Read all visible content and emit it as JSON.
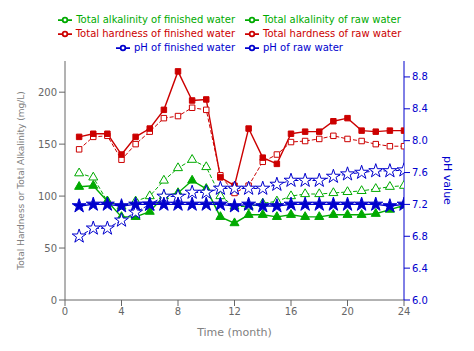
{
  "chart_data": {
    "type": "line",
    "x": [
      1,
      2,
      3,
      4,
      5,
      6,
      7,
      8,
      9,
      10,
      11,
      12,
      13,
      14,
      15,
      16,
      17,
      18,
      19,
      20,
      21,
      22,
      23,
      24
    ],
    "xlabel": "Time (month)",
    "ylabel": "Total Hardness or Total Alkalinity (mg/L)",
    "y2label": "pH value",
    "xlim": [
      0,
      24
    ],
    "xticks": [
      0,
      4,
      8,
      12,
      16,
      20,
      24
    ],
    "ylim": [
      0,
      230
    ],
    "yticks": [
      0,
      50,
      100,
      150,
      200
    ],
    "y2lim": [
      6.0,
      9.0
    ],
    "y2ticks": [
      {
        "value": 6.0,
        "label": "6.0"
      },
      6.4,
      6.8,
      7.2,
      7.6,
      {
        "value": 8.0,
        "label": "8.0"
      },
      8.4,
      8.8
    ],
    "grid": false,
    "legend": "top",
    "series": [
      {
        "name": "Total hardness of raw water",
        "color": "#cc0000",
        "marker": "square",
        "line_style": "dashed",
        "values": [
          145,
          157,
          158,
          135,
          150,
          162,
          175,
          177,
          185,
          183,
          120,
          103,
          110,
          133,
          140,
          152,
          153,
          155,
          158,
          155,
          153,
          150,
          148,
          148
        ]
      },
      {
        "name": "Total hardness of finished water",
        "color": "#cc0000",
        "marker": "square",
        "line_style": "solid",
        "values": [
          157,
          160,
          160,
          140,
          157,
          165,
          183,
          220,
          192,
          193,
          118,
          110,
          165,
          137,
          131,
          160,
          162,
          162,
          172,
          175,
          163,
          162,
          163,
          163
        ]
      },
      {
        "name": "Total alkalinity of raw water",
        "color": "#00aa00",
        "marker": "triangle",
        "line_style": "dashed",
        "values": [
          122,
          118,
          95,
          90,
          95,
          100,
          115,
          127,
          135,
          128,
          100,
          90,
          90,
          93,
          95,
          100,
          102,
          102,
          103,
          104,
          105,
          107,
          109,
          110
        ]
      },
      {
        "name": "Total alkalinity of finished water",
        "color": "#00aa00",
        "marker": "triangle",
        "line_style": "solid",
        "values": [
          109,
          110,
          95,
          80,
          80,
          85,
          100,
          103,
          115,
          107,
          80,
          74,
          82,
          82,
          80,
          82,
          80,
          80,
          82,
          82,
          82,
          83,
          87,
          91
        ]
      },
      {
        "name": "pH of raw water",
        "color": "#0000cd",
        "marker": "star",
        "line_style": "dashed",
        "axis": "y2",
        "values": [
          6.8,
          6.9,
          6.9,
          7.0,
          7.1,
          7.2,
          7.3,
          7.3,
          7.35,
          7.35,
          7.4,
          7.4,
          7.4,
          7.4,
          7.45,
          7.5,
          7.5,
          7.5,
          7.55,
          7.58,
          7.6,
          7.62,
          7.62,
          7.63
        ]
      },
      {
        "name": "pH of finished water",
        "color": "#0000cd",
        "marker": "star",
        "line_style": "solid",
        "axis": "y2",
        "values": [
          7.18,
          7.2,
          7.2,
          7.18,
          7.2,
          7.2,
          7.2,
          7.2,
          7.2,
          7.2,
          7.2,
          7.18,
          7.2,
          7.18,
          7.18,
          7.2,
          7.2,
          7.2,
          7.2,
          7.2,
          7.2,
          7.2,
          7.18,
          7.2
        ]
      }
    ]
  }
}
